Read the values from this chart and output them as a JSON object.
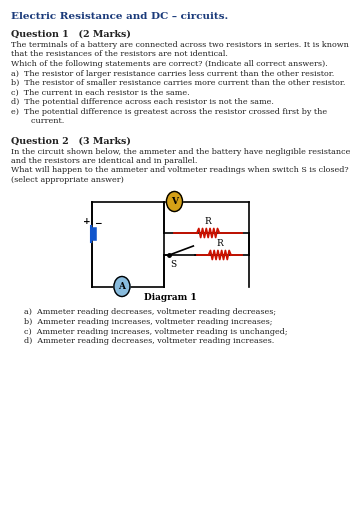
{
  "title": "Electric Resistance and DC – circuits.",
  "q1_header": "Question 1   (2 Marks)",
  "q1_body_lines": [
    "The terminals of a battery are connected across two resistors in series. It is known",
    "that the resistances of the resistors are not identical.",
    "Which of the following statements are correct? (Indicate all correct answers)."
  ],
  "q1_items": [
    "a)  The resistor of larger resistance carries less current than the other resistor.",
    "b)  The resistor of smaller resistance carries more current than the other resistor.",
    "c)  The current in each resistor is the same.",
    "d)  The potential difference across each resistor is not the same.",
    "e)  The potential difference is greatest across the resistor crossed first by the",
    "        current."
  ],
  "q2_header": "Question 2   (3 Marks)",
  "q2_body_lines": [
    "In the circuit shown below, the ammeter and the battery have negligible resistance",
    "and the resistors are identical and in parallel.",
    "What will happen to the ammeter and voltmeter readings when switch S is closed?",
    "(select appropriate answer)"
  ],
  "diagram_label": "Diagram 1",
  "q2_items": [
    "a)  Ammeter reading decreases, voltmeter reading decreases;",
    "b)  Ammeter reading increases, voltmeter reading increases;",
    "c)  Ammeter reading increases, voltmeter reading is unchanged;",
    "d)  Ammeter reading decreases, voltmeter reading increases."
  ],
  "title_color": "#1a3a7a",
  "bold_color": "#000000",
  "body_color": "#222222",
  "bg_color": "#ffffff",
  "resistor_color": "#cc1100",
  "battery_color": "#1155cc",
  "voltmeter_fill": "#d4a017",
  "ammeter_fill": "#88bbdd",
  "wire_color": "#000000"
}
